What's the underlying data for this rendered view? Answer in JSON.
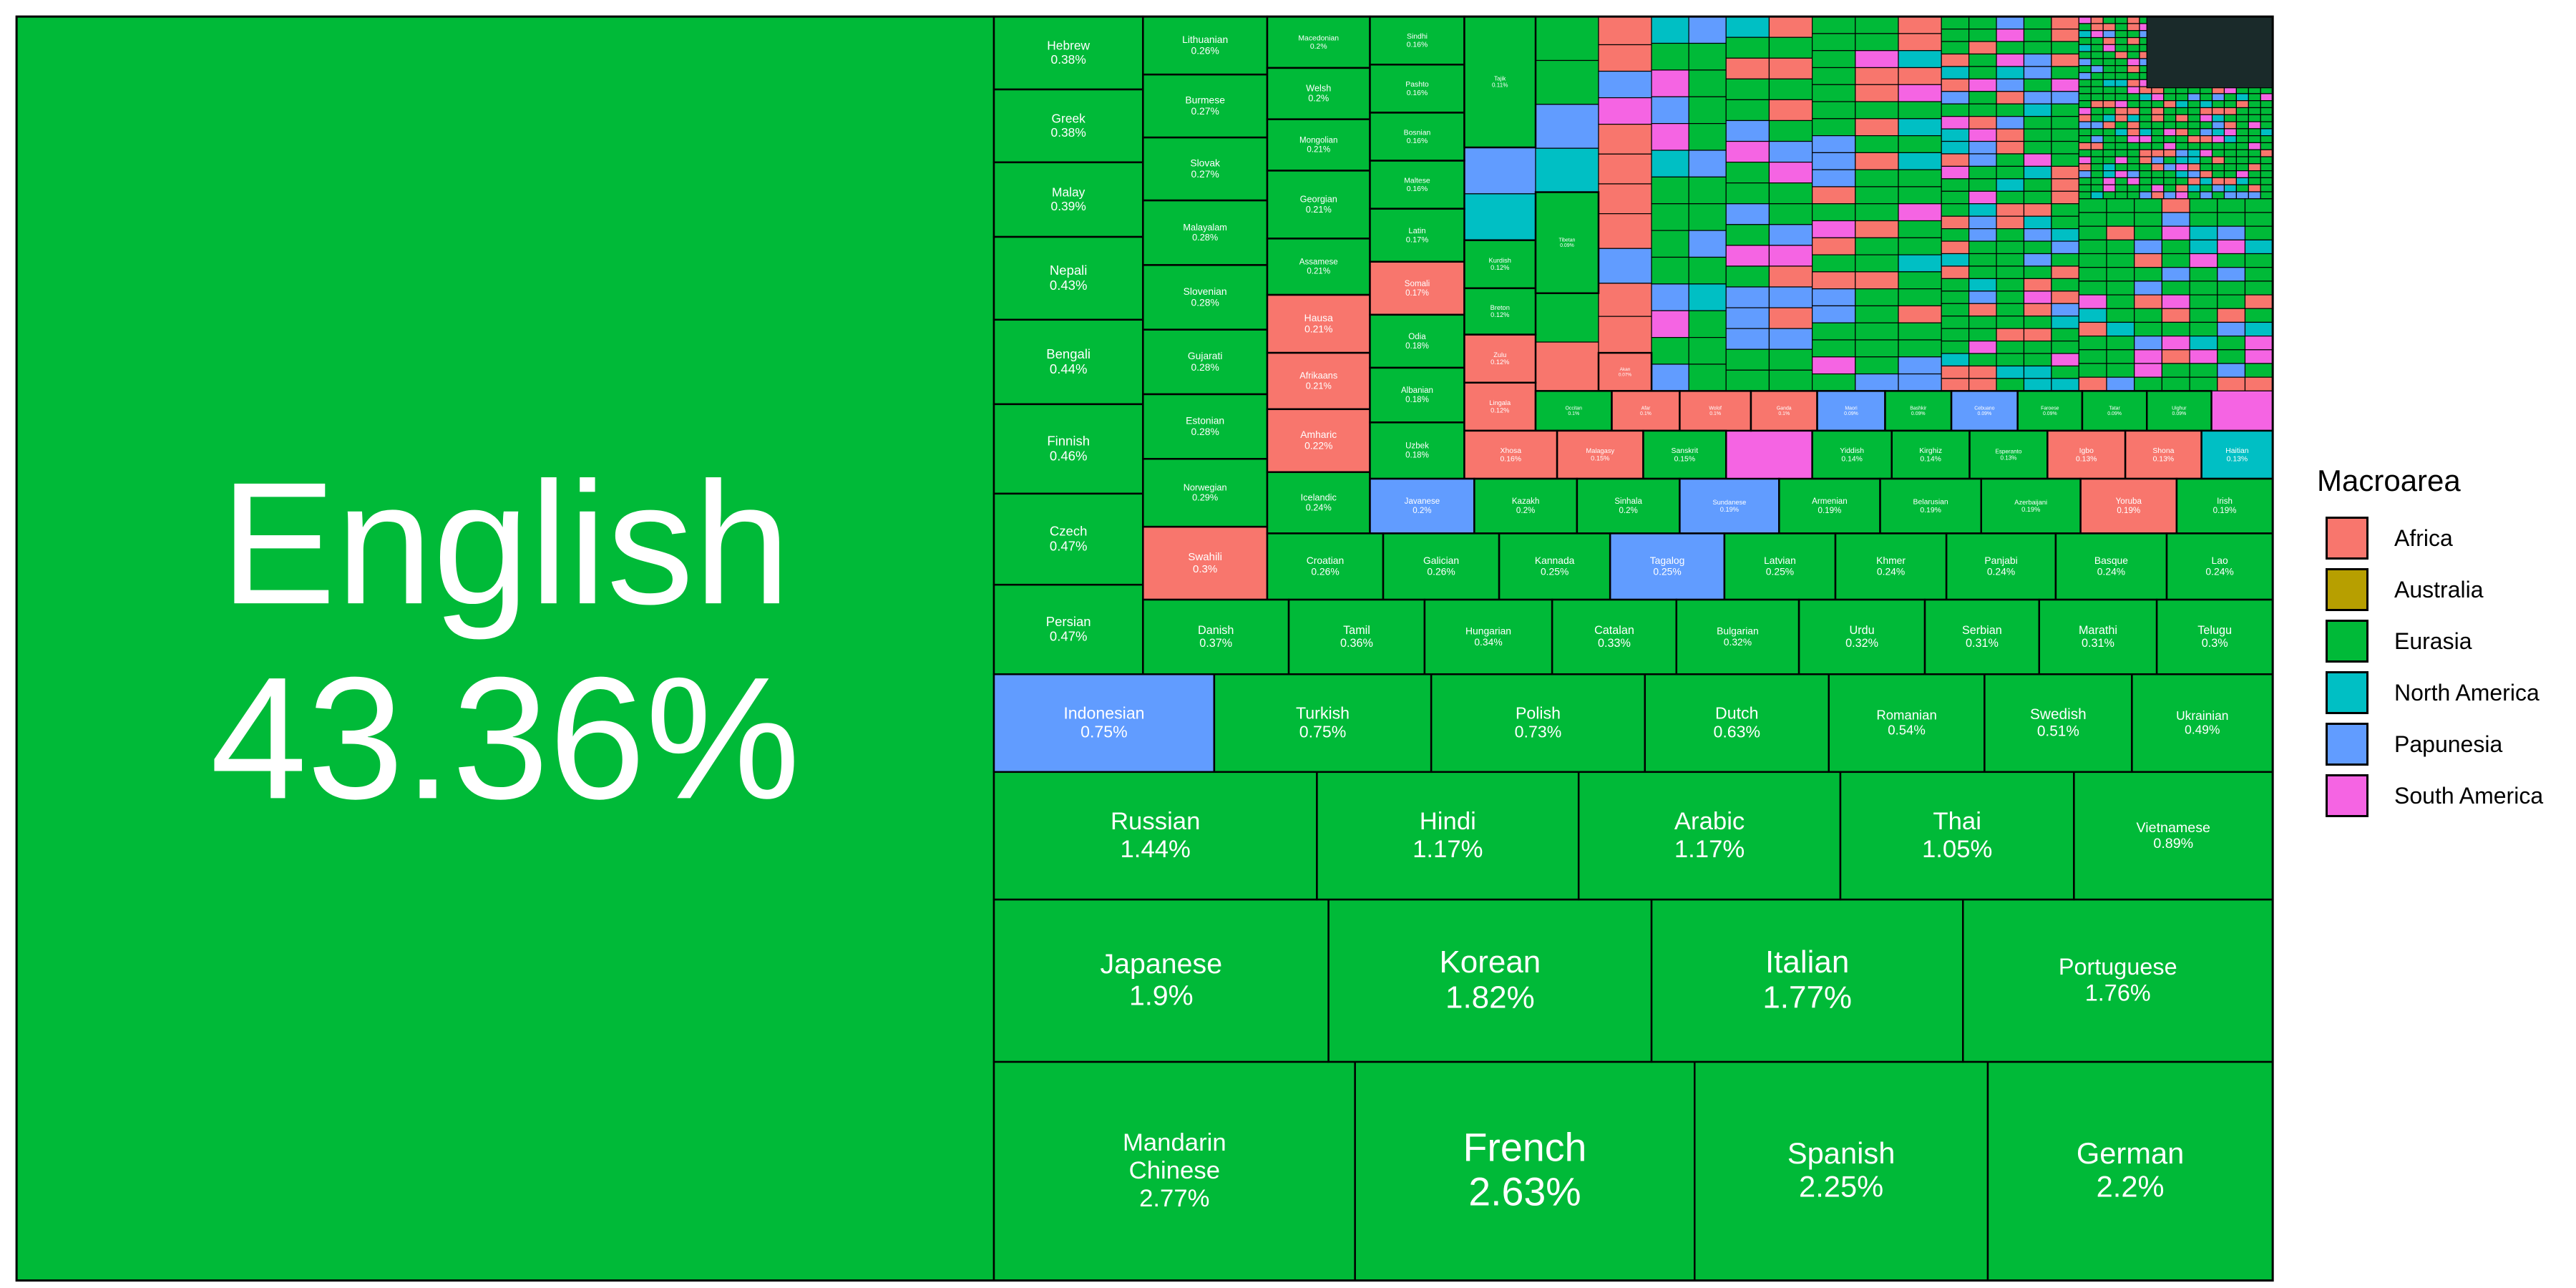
{
  "chart_data": {
    "type": "treemap",
    "value_unit": "%",
    "legend": {
      "title": "Macroarea",
      "items": [
        {
          "label": "Africa",
          "color": "#F8766D"
        },
        {
          "label": "Australia",
          "color": "#B79F00"
        },
        {
          "label": "Eurasia",
          "color": "#00BA38"
        },
        {
          "label": "North America",
          "color": "#00BFC4"
        },
        {
          "label": "Papunesia",
          "color": "#619CFF"
        },
        {
          "label": "South America",
          "color": "#F564E3"
        }
      ]
    },
    "cells": [
      {
        "label": "English",
        "value": "43.36%",
        "area": "Eurasia"
      },
      {
        "label": "Mandarin Chinese",
        "value": "2.77%",
        "area": "Eurasia"
      },
      {
        "label": "French",
        "value": "2.63%",
        "area": "Eurasia"
      },
      {
        "label": "Spanish",
        "value": "2.25%",
        "area": "Eurasia"
      },
      {
        "label": "German",
        "value": "2.2%",
        "area": "Eurasia"
      },
      {
        "label": "Japanese",
        "value": "1.9%",
        "area": "Eurasia"
      },
      {
        "label": "Korean",
        "value": "1.82%",
        "area": "Eurasia"
      },
      {
        "label": "Italian",
        "value": "1.77%",
        "area": "Eurasia"
      },
      {
        "label": "Portuguese",
        "value": "1.76%",
        "area": "Eurasia"
      },
      {
        "label": "Russian",
        "value": "1.44%",
        "area": "Eurasia"
      },
      {
        "label": "Hindi",
        "value": "1.17%",
        "area": "Eurasia"
      },
      {
        "label": "Arabic",
        "value": "1.17%",
        "area": "Eurasia"
      },
      {
        "label": "Thai",
        "value": "1.05%",
        "area": "Eurasia"
      },
      {
        "label": "Vietnamese",
        "value": "0.89%",
        "area": "Eurasia"
      },
      {
        "label": "Indonesian",
        "value": "0.75%",
        "area": "Papunesia"
      },
      {
        "label": "Turkish",
        "value": "0.75%",
        "area": "Eurasia"
      },
      {
        "label": "Polish",
        "value": "0.73%",
        "area": "Eurasia"
      },
      {
        "label": "Dutch",
        "value": "0.63%",
        "area": "Eurasia"
      },
      {
        "label": "Romanian",
        "value": "0.54%",
        "area": "Eurasia"
      },
      {
        "label": "Swedish",
        "value": "0.51%",
        "area": "Eurasia"
      },
      {
        "label": "Ukrainian",
        "value": "0.49%",
        "area": "Eurasia"
      },
      {
        "label": "Hebrew",
        "value": "0.38%",
        "area": "Eurasia"
      },
      {
        "label": "Greek",
        "value": "0.38%",
        "area": "Eurasia"
      },
      {
        "label": "Malay",
        "value": "0.39%",
        "area": "Eurasia"
      },
      {
        "label": "Nepali",
        "value": "0.43%",
        "area": "Eurasia"
      },
      {
        "label": "Bengali",
        "value": "0.44%",
        "area": "Eurasia"
      },
      {
        "label": "Finnish",
        "value": "0.46%",
        "area": "Eurasia"
      },
      {
        "label": "Czech",
        "value": "0.47%",
        "area": "Eurasia"
      },
      {
        "label": "Persian",
        "value": "0.47%",
        "area": "Eurasia"
      },
      {
        "label": "Lithuanian",
        "value": "0.26%",
        "area": "Eurasia"
      },
      {
        "label": "Burmese",
        "value": "0.27%",
        "area": "Eurasia"
      },
      {
        "label": "Slovak",
        "value": "0.27%",
        "area": "Eurasia"
      },
      {
        "label": "Malayalam",
        "value": "0.28%",
        "area": "Eurasia"
      },
      {
        "label": "Slovenian",
        "value": "0.28%",
        "area": "Eurasia"
      },
      {
        "label": "Gujarati",
        "value": "0.28%",
        "area": "Eurasia"
      },
      {
        "label": "Estonian",
        "value": "0.28%",
        "area": "Eurasia"
      },
      {
        "label": "Norwegian",
        "value": "0.29%",
        "area": "Eurasia"
      },
      {
        "label": "Swahili",
        "value": "0.3%",
        "area": "Africa"
      },
      {
        "label": "Macedonian",
        "value": "0.2%",
        "area": "Eurasia"
      },
      {
        "label": "Welsh",
        "value": "0.2%",
        "area": "Eurasia"
      },
      {
        "label": "Mongolian",
        "value": "0.21%",
        "area": "Eurasia"
      },
      {
        "label": "Georgian",
        "value": "0.21%",
        "area": "Eurasia"
      },
      {
        "label": "Assamese",
        "value": "0.21%",
        "area": "Eurasia"
      },
      {
        "label": "Hausa",
        "value": "0.21%",
        "area": "Africa"
      },
      {
        "label": "Afrikaans",
        "value": "0.21%",
        "area": "Africa"
      },
      {
        "label": "Amharic",
        "value": "0.22%",
        "area": "Africa"
      },
      {
        "label": "Icelandic",
        "value": "0.24%",
        "area": "Eurasia"
      },
      {
        "label": "Sindhi",
        "value": "0.16%",
        "area": "Eurasia"
      },
      {
        "label": "Pashto",
        "value": "0.16%",
        "area": "Eurasia"
      },
      {
        "label": "Bosnian",
        "value": "0.16%",
        "area": "Eurasia"
      },
      {
        "label": "Maltese",
        "value": "0.16%",
        "area": "Eurasia"
      },
      {
        "label": "Latin",
        "value": "0.17%",
        "area": "Eurasia"
      },
      {
        "label": "Somali",
        "value": "0.17%",
        "area": "Africa"
      },
      {
        "label": "Odia",
        "value": "0.18%",
        "area": "Eurasia"
      },
      {
        "label": "Albanian",
        "value": "0.18%",
        "area": "Eurasia"
      },
      {
        "label": "Uzbek",
        "value": "0.18%",
        "area": "Eurasia"
      },
      {
        "label": "Tajik",
        "value": "0.11%",
        "area": "Eurasia"
      },
      {
        "label": "Kurdish",
        "value": "0.12%",
        "area": "Eurasia"
      },
      {
        "label": "Breton",
        "value": "0.12%",
        "area": "Eurasia"
      },
      {
        "label": "Zulu",
        "value": "0.12%",
        "area": "Africa"
      },
      {
        "label": "Lingala",
        "value": "0.12%",
        "area": "Africa"
      },
      {
        "label": "Tibetan",
        "value": "0.09%",
        "area": "Eurasia"
      },
      {
        "label": "Akan",
        "value": "0.07%",
        "area": "Africa"
      },
      {
        "label": "Occitan",
        "value": "0.1%",
        "area": "Eurasia"
      },
      {
        "label": "Afar",
        "value": "0.1%",
        "area": "Africa"
      },
      {
        "label": "Wolof",
        "value": "0.1%",
        "area": "Africa"
      },
      {
        "label": "Ganda",
        "value": "0.1%",
        "area": "Africa"
      },
      {
        "label": "Maori",
        "value": "0.09%",
        "area": "Papunesia"
      },
      {
        "label": "Bashkir",
        "value": "0.09%",
        "area": "Eurasia"
      },
      {
        "label": "Cebuano",
        "value": "0.09%",
        "area": "Papunesia"
      },
      {
        "label": "Faroese",
        "value": "0.09%",
        "area": "Eurasia"
      },
      {
        "label": "Tatar",
        "value": "0.09%",
        "area": "Eurasia"
      },
      {
        "label": "Uighur",
        "value": "0.09%",
        "area": "Eurasia"
      },
      {
        "label": "Xhosa",
        "value": "0.16%",
        "area": "Africa"
      },
      {
        "label": "Malagasy",
        "value": "0.15%",
        "area": "Africa"
      },
      {
        "label": "Sanskrit",
        "value": "0.15%",
        "area": "Eurasia"
      },
      {
        "label": "Yiddish",
        "value": "0.14%",
        "area": "Eurasia"
      },
      {
        "label": "Kirghiz",
        "value": "0.14%",
        "area": "Eurasia"
      },
      {
        "label": "Esperanto",
        "value": "0.13%",
        "area": "Eurasia"
      },
      {
        "label": "Igbo",
        "value": "0.13%",
        "area": "Africa"
      },
      {
        "label": "Shona",
        "value": "0.13%",
        "area": "Africa"
      },
      {
        "label": "Haitian",
        "value": "0.13%",
        "area": "North America"
      },
      {
        "label": "Javanese",
        "value": "0.2%",
        "area": "Papunesia"
      },
      {
        "label": "Kazakh",
        "value": "0.2%",
        "area": "Eurasia"
      },
      {
        "label": "Sinhala",
        "value": "0.2%",
        "area": "Eurasia"
      },
      {
        "label": "Sundanese",
        "value": "0.19%",
        "area": "Papunesia"
      },
      {
        "label": "Armenian",
        "value": "0.19%",
        "area": "Eurasia"
      },
      {
        "label": "Belarusian",
        "value": "0.19%",
        "area": "Eurasia"
      },
      {
        "label": "Azerbaijani",
        "value": "0.19%",
        "area": "Eurasia"
      },
      {
        "label": "Yoruba",
        "value": "0.19%",
        "area": "Africa"
      },
      {
        "label": "Irish",
        "value": "0.19%",
        "area": "Eurasia"
      },
      {
        "label": "Croatian",
        "value": "0.26%",
        "area": "Eurasia"
      },
      {
        "label": "Galician",
        "value": "0.26%",
        "area": "Eurasia"
      },
      {
        "label": "Kannada",
        "value": "0.25%",
        "area": "Eurasia"
      },
      {
        "label": "Tagalog",
        "value": "0.25%",
        "area": "Papunesia"
      },
      {
        "label": "Latvian",
        "value": "0.25%",
        "area": "Eurasia"
      },
      {
        "label": "Khmer",
        "value": "0.24%",
        "area": "Eurasia"
      },
      {
        "label": "Panjabi",
        "value": "0.24%",
        "area": "Eurasia"
      },
      {
        "label": "Basque",
        "value": "0.24%",
        "area": "Eurasia"
      },
      {
        "label": "Lao",
        "value": "0.24%",
        "area": "Eurasia"
      },
      {
        "label": "Danish",
        "value": "0.37%",
        "area": "Eurasia"
      },
      {
        "label": "Tamil",
        "value": "0.36%",
        "area": "Eurasia"
      },
      {
        "label": "Hungarian",
        "value": "0.34%",
        "area": "Eurasia"
      },
      {
        "label": "Catalan",
        "value": "0.33%",
        "area": "Eurasia"
      },
      {
        "label": "Bulgarian",
        "value": "0.32%",
        "area": "Eurasia"
      },
      {
        "label": "Urdu",
        "value": "0.32%",
        "area": "Eurasia"
      },
      {
        "label": "Serbian",
        "value": "0.31%",
        "area": "Eurasia"
      },
      {
        "label": "Marathi",
        "value": "0.31%",
        "area": "Eurasia"
      },
      {
        "label": "Telugu",
        "value": "0.3%",
        "area": "Eurasia"
      }
    ]
  }
}
